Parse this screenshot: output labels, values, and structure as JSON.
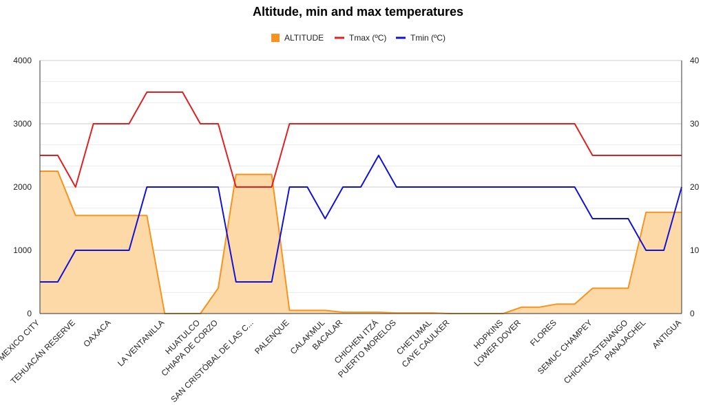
{
  "chart_data": {
    "type": "line",
    "title": "Altitude, min and max temperatures",
    "categories": [
      "MEXICO CITY",
      "",
      "TEHUACÁN RESERVE",
      "",
      "OAXACA",
      "",
      "",
      "LA VENTANILLA",
      "",
      "HUATULCO",
      "CHIAPA DE CORZO",
      "",
      "SAN CRISTÓBAL DE LAS C...",
      "",
      "PALENQUE",
      "",
      "CALAKMUL",
      "BACALAR",
      "",
      "CHICHEN ITZÁ",
      "PUERTO MORELOS",
      "",
      "CHETUMAL",
      "CAYE CAULKER",
      "",
      "",
      "HOPKINS",
      "LOWER DOVER",
      "",
      "FLORES",
      "",
      "SEMUC CHAMPEY",
      "",
      "CHICHICASTENANGO",
      "PANAJACHEL",
      "",
      "ANTIGUA"
    ],
    "left_axis": {
      "min": 0,
      "max": 4000,
      "ticks": [
        "0",
        "1000",
        "2000",
        "3000",
        "4000"
      ]
    },
    "right_axis": {
      "min": 0,
      "max": 40,
      "ticks": [
        "0",
        "10",
        "20",
        "30",
        "40"
      ]
    },
    "legend_position": "top-center",
    "series": [
      {
        "name": "ALTITUDE",
        "type": "area",
        "axis": "left",
        "color": "#f7931e",
        "fill": "#fcd9a6",
        "values": [
          2250,
          2250,
          1550,
          1550,
          1550,
          1550,
          1550,
          0,
          0,
          0,
          400,
          2200,
          2200,
          2200,
          50,
          50,
          50,
          20,
          20,
          20,
          10,
          10,
          10,
          0,
          0,
          0,
          0,
          100,
          100,
          150,
          150,
          400,
          400,
          400,
          1600,
          1600,
          1600
        ]
      },
      {
        "name": "Tmax (ºC)",
        "type": "line",
        "axis": "right",
        "color": "#e02020",
        "values": [
          25,
          25,
          20,
          30,
          30,
          30,
          35,
          35,
          35,
          30,
          30,
          20,
          20,
          20,
          30,
          30,
          30,
          30,
          30,
          30,
          30,
          30,
          30,
          30,
          30,
          30,
          30,
          30,
          30,
          30,
          30,
          25,
          25,
          25,
          25,
          25,
          25
        ]
      },
      {
        "name": "Tmin (ºC)",
        "type": "line",
        "axis": "right",
        "color": "#1010dd",
        "values": [
          5,
          5,
          10,
          10,
          10,
          10,
          20,
          20,
          20,
          20,
          20,
          5,
          5,
          5,
          20,
          20,
          15,
          20,
          20,
          25,
          20,
          20,
          20,
          20,
          20,
          20,
          20,
          20,
          20,
          20,
          20,
          15,
          15,
          15,
          10,
          10,
          20
        ]
      }
    ]
  }
}
